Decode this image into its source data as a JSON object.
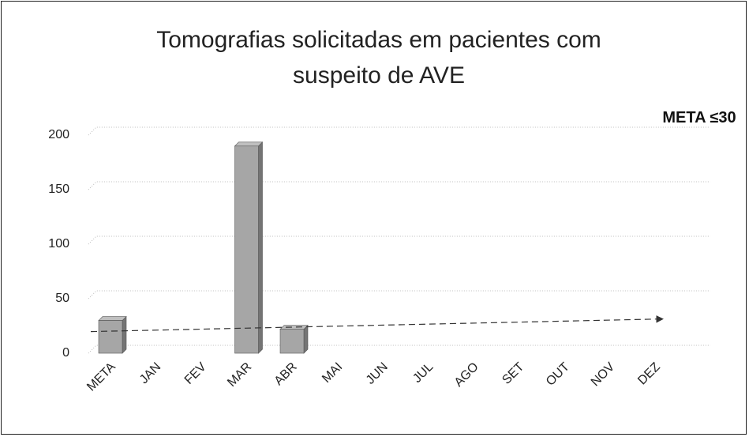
{
  "chart_data": {
    "type": "bar",
    "title": "Tomografias solicitadas em pacientes com suspeito de AVE",
    "annotation": "META ≤30",
    "categories": [
      "META",
      "JAN",
      "FEV",
      "MAR",
      "ABR",
      "MAI",
      "JUN",
      "JUL",
      "AGO",
      "SET",
      "OUT",
      "NOV",
      "DEZ"
    ],
    "values": [
      30,
      null,
      null,
      190,
      22,
      null,
      null,
      null,
      null,
      null,
      null,
      null,
      null
    ],
    "color": "#a6a6a6",
    "ylim": [
      0,
      200
    ],
    "yticks": [
      0,
      50,
      100,
      150,
      200
    ],
    "grid": true
  }
}
